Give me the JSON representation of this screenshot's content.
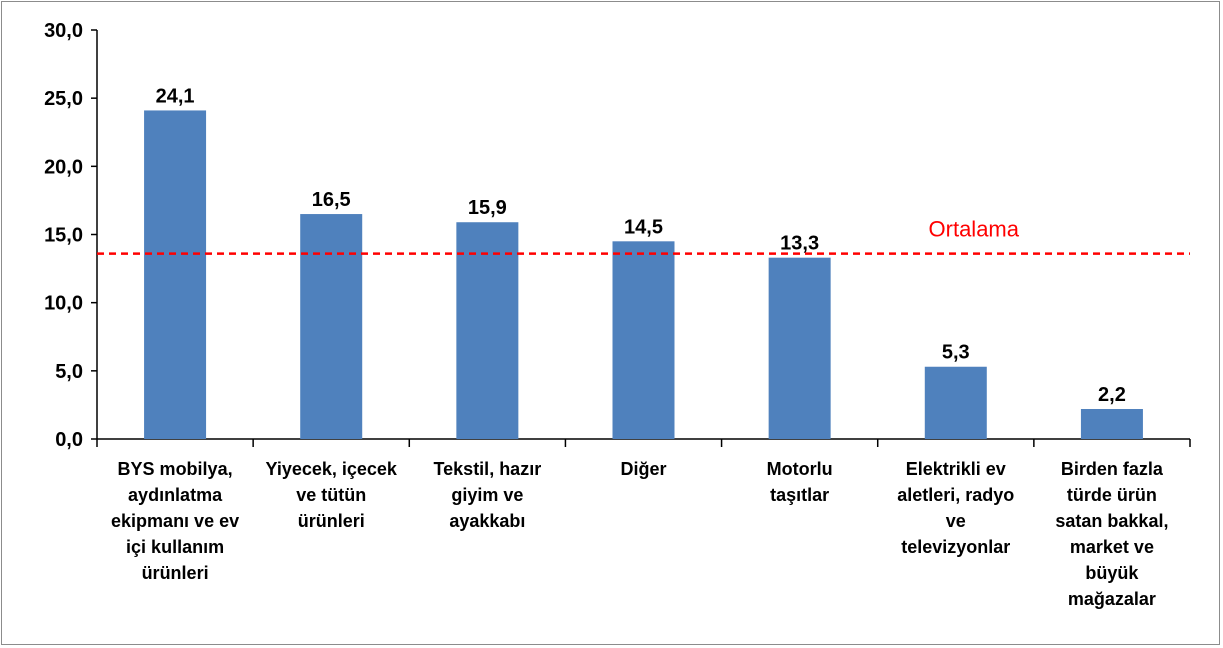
{
  "chart_data": {
    "type": "bar",
    "categories": [
      [
        "BYS mobilya,",
        "aydınlatma",
        "ekipmanı ve ev",
        "içi kullanım",
        "ürünleri"
      ],
      [
        "Yiyecek, içecek",
        "ve tütün",
        "ürünleri"
      ],
      [
        "Tekstil, hazır",
        "giyim ve",
        "ayakkabı"
      ],
      [
        "Diğer"
      ],
      [
        "Motorlu",
        "taşıtlar"
      ],
      [
        "Elektrikli ev",
        "aletleri, radyo",
        "ve",
        "televizyonlar"
      ],
      [
        "Birden fazla",
        "türde ürün",
        "satan bakkal,",
        "market ve",
        "büyük",
        "mağazalar"
      ]
    ],
    "values": [
      24.1,
      16.5,
      15.9,
      14.5,
      13.3,
      5.3,
      2.2
    ],
    "data_labels": [
      "24,1",
      "16,5",
      "15,9",
      "14,5",
      "13,3",
      "5,3",
      "2,2"
    ],
    "ylim": [
      0,
      30
    ],
    "yticks": [
      0,
      5,
      10,
      15,
      20,
      25,
      30
    ],
    "ytick_labels": [
      "0,0",
      "5,0",
      "10,0",
      "15,0",
      "20,0",
      "25,0",
      "30,0"
    ],
    "reference_line": {
      "label": "Ortalama",
      "value": 13.6,
      "color": "#ff0000",
      "style": "dashed"
    },
    "bar_color": "#4f81bd",
    "grid": false,
    "legend": "none"
  }
}
